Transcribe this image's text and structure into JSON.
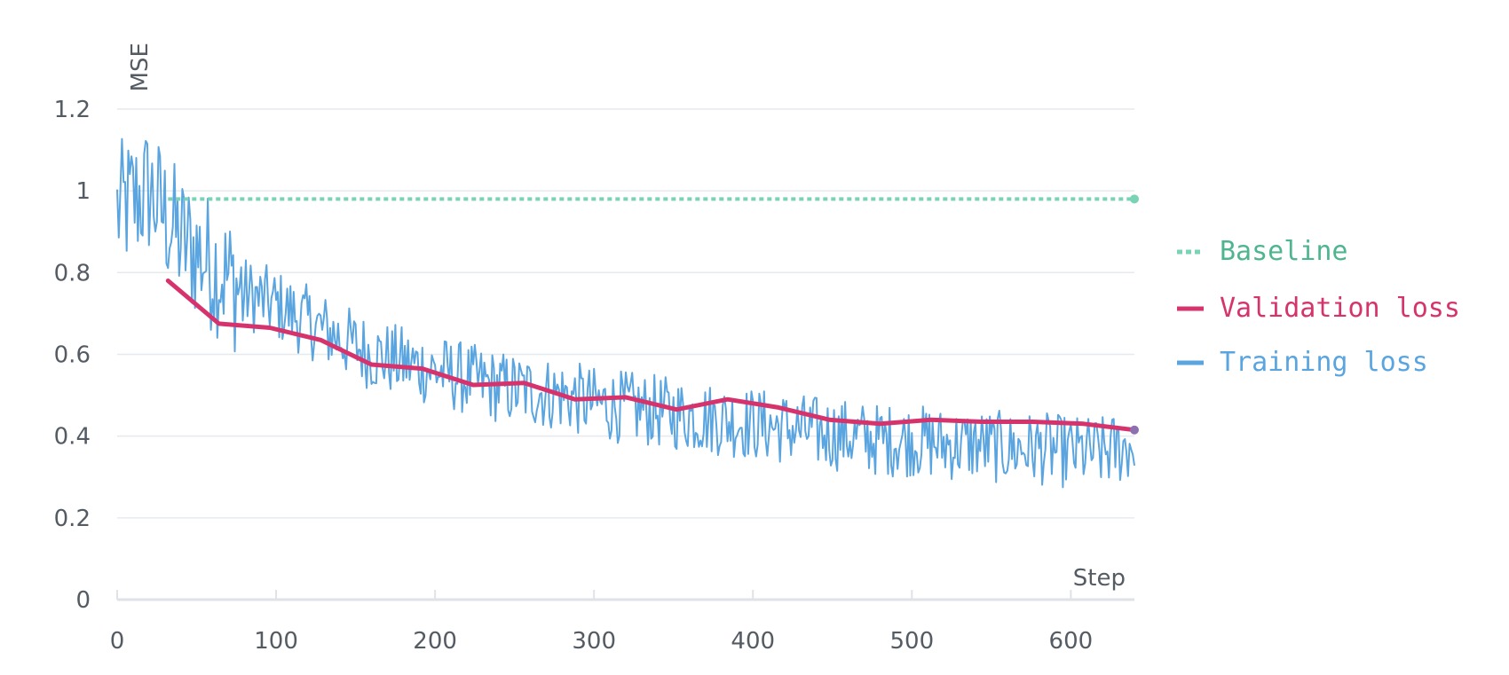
{
  "chart_data": {
    "type": "line",
    "xlabel": "Step",
    "ylabel": "MSE",
    "xlim": [
      0,
      640
    ],
    "ylim": [
      0,
      1.38
    ],
    "xticks": [
      "0",
      "100",
      "200",
      "300",
      "400",
      "500",
      "600"
    ],
    "yticks": [
      "0",
      "0.2",
      "0.4",
      "0.6",
      "0.8",
      "1",
      "1.2"
    ],
    "grid": true,
    "legend_position": "right",
    "series": [
      {
        "name": "Baseline",
        "color": "#7ad3b6",
        "style": "dashed",
        "x": [
          32,
          640
        ],
        "y": [
          0.98,
          0.98
        ]
      },
      {
        "name": "Validation loss",
        "color": "#d6336c",
        "style": "solid",
        "x": [
          32,
          64,
          96,
          128,
          160,
          192,
          224,
          256,
          288,
          320,
          352,
          384,
          416,
          448,
          480,
          512,
          544,
          576,
          608,
          640
        ],
        "y": [
          0.78,
          0.675,
          0.665,
          0.635,
          0.575,
          0.565,
          0.525,
          0.53,
          0.49,
          0.495,
          0.465,
          0.49,
          0.47,
          0.44,
          0.43,
          0.44,
          0.435,
          0.435,
          0.43,
          0.415
        ]
      },
      {
        "name": "Training loss",
        "color": "#5aa5e0",
        "style": "solid",
        "x": [
          0,
          20,
          40,
          60,
          80,
          100,
          120,
          140,
          160,
          180,
          200,
          220,
          240,
          260,
          280,
          300,
          320,
          340,
          360,
          380,
          400,
          420,
          440,
          460,
          480,
          500,
          520,
          540,
          560,
          580,
          600,
          620,
          640
        ],
        "y": [
          0.95,
          1.0,
          0.88,
          0.82,
          0.75,
          0.72,
          0.68,
          0.64,
          0.6,
          0.58,
          0.56,
          0.54,
          0.52,
          0.51,
          0.5,
          0.48,
          0.47,
          0.46,
          0.45,
          0.44,
          0.43,
          0.42,
          0.41,
          0.4,
          0.39,
          0.39,
          0.38,
          0.38,
          0.37,
          0.37,
          0.36,
          0.36,
          0.38
        ],
        "noise_amplitude": 0.09
      }
    ]
  }
}
